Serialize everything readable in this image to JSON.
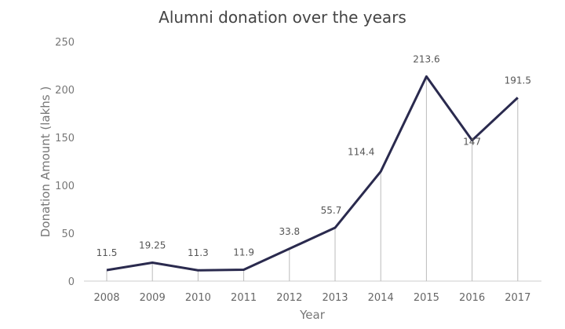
{
  "chart_data": {
    "type": "line",
    "title": "Alumni donation over the years",
    "xlabel": "Year",
    "ylabel": "Donation Amount (lakhs )",
    "categories": [
      "2008",
      "2009",
      "2010",
      "2011",
      "2012",
      "2013",
      "2014",
      "2015",
      "2016",
      "2017"
    ],
    "values": [
      11.5,
      19.25,
      11.3,
      11.9,
      33.8,
      55.7,
      114.4,
      213.6,
      147,
      191.5
    ],
    "data_labels": [
      "11.5",
      "19.25",
      "11.3",
      "11.9",
      "33.8",
      "55.7",
      "114.4",
      "213.6",
      "147",
      "191.5"
    ],
    "ylim": [
      0,
      250
    ],
    "yticks": [
      "0",
      "50",
      "100",
      "150",
      "200",
      "250"
    ],
    "grid": false,
    "drop_lines": true,
    "line_color": "#2a2a4e"
  }
}
